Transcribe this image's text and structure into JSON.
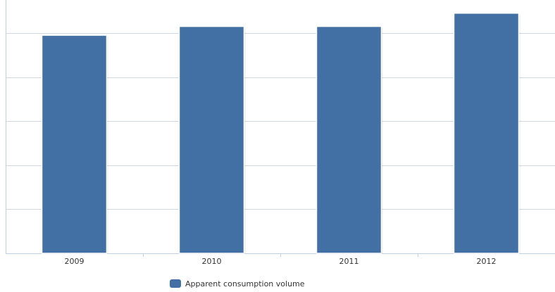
{
  "chart_data": {
    "type": "bar",
    "categories": [
      "2009",
      "2010",
      "2011",
      "2012"
    ],
    "series": [
      {
        "name": "Apparent consumption volume",
        "values": [
          4.95,
          5.15,
          5.15,
          5.45
        ]
      }
    ],
    "ylim": [
      0,
      5.75
    ],
    "y_gridlines": [
      1,
      2,
      3,
      4,
      5
    ],
    "grid": true,
    "y_tick_labels_visible": false,
    "legend_placement": "bottom",
    "colors": {
      "bar": "#4370a4",
      "grid": "#d0d7e0",
      "axis": "#c0d0e0"
    }
  }
}
